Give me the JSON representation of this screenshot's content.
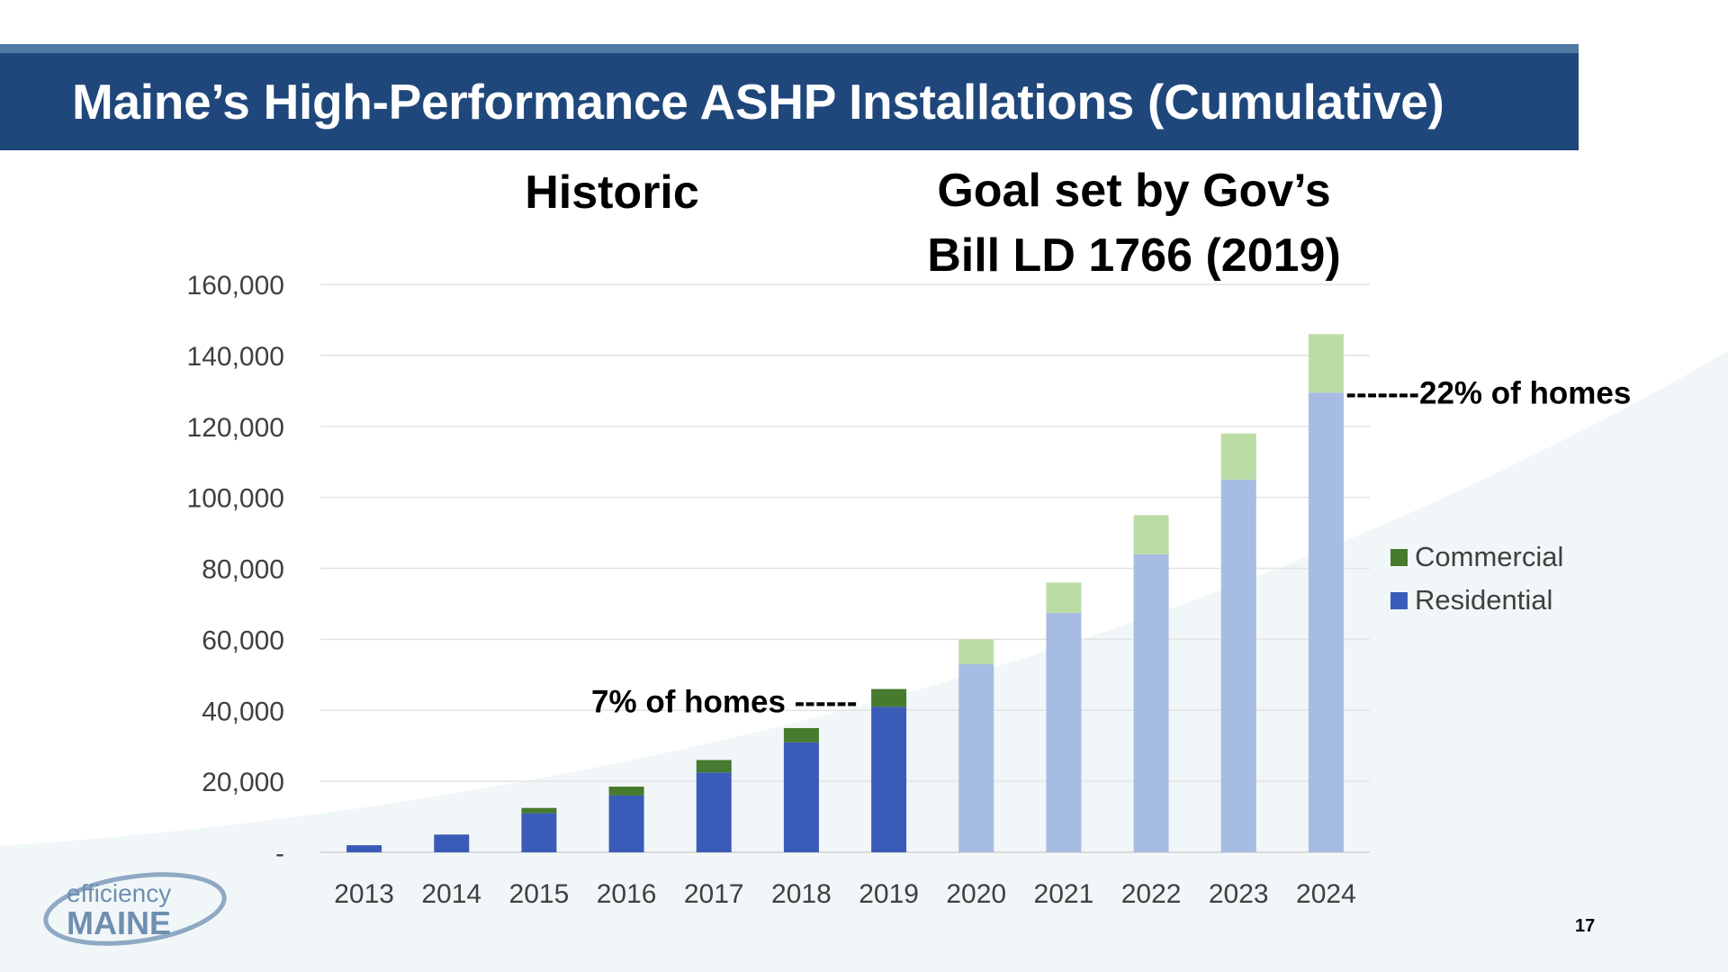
{
  "slide": {
    "title": "Maine’s High-Performance ASHP Installations (Cumulative)",
    "heading_historic": "Historic",
    "heading_goal_line1": "Goal set by Gov’s",
    "heading_goal_line2": "Bill LD 1766 (2019)",
    "page_number": "17",
    "logo_top": "efficiency",
    "logo_bottom": "MAINE"
  },
  "colors": {
    "title_bar": "#1f477b",
    "stripe": "#4f7aa3",
    "residential_historic": "#3a5cb8",
    "commercial_historic": "#467a2e",
    "residential_goal": "#a7bce2",
    "commercial_goal": "#bcdca6"
  },
  "chart_data": {
    "type": "bar",
    "stacked": true,
    "categories": [
      "2013",
      "2014",
      "2015",
      "2016",
      "2017",
      "2018",
      "2019",
      "2020",
      "2021",
      "2022",
      "2023",
      "2024"
    ],
    "series": [
      {
        "name": "Residential",
        "values": [
          2000,
          5000,
          11000,
          16000,
          22500,
          31000,
          41000,
          53000,
          67500,
          84000,
          105000,
          129500
        ]
      },
      {
        "name": "Commercial",
        "values": [
          0,
          0,
          1500,
          2500,
          3500,
          4000,
          5000,
          7000,
          8500,
          11000,
          13000,
          16500
        ]
      }
    ],
    "historic_categories": [
      "2013",
      "2014",
      "2015",
      "2016",
      "2017",
      "2018",
      "2019"
    ],
    "goal_categories": [
      "2020",
      "2021",
      "2022",
      "2023",
      "2024"
    ],
    "ylim": [
      0,
      160000
    ],
    "yticks": [
      0,
      20000,
      40000,
      60000,
      80000,
      100000,
      120000,
      140000,
      160000
    ],
    "ytick_labels": [
      "-",
      "20,000",
      "40,000",
      "60,000",
      "80,000",
      "100,000",
      "120,000",
      "140,000",
      "160,000"
    ],
    "legend": [
      "Commercial",
      "Residential"
    ],
    "legend_position": "right",
    "grid": true,
    "annotations": [
      {
        "text": "7% of homes ------",
        "anchor_category": "2019"
      },
      {
        "text": "-------22% of homes",
        "anchor_category": "2024"
      }
    ]
  }
}
